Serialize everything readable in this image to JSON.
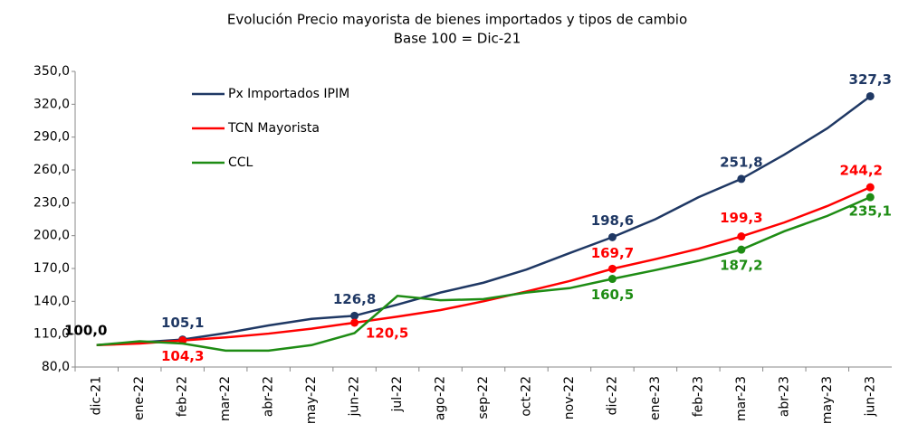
{
  "chart_data": {
    "type": "line",
    "title": "Evolución Precio mayorista de bienes importados y tipos de cambio",
    "subtitle": "Base 100 = Dic-21",
    "categories": [
      "dic-21",
      "ene-22",
      "feb-22",
      "mar-22",
      "abr-22",
      "may-22",
      "jun-22",
      "jul-22",
      "ago-22",
      "sep-22",
      "oct-22",
      "nov-22",
      "dic-22",
      "ene-23",
      "feb-23",
      "mar-23",
      "abr-23",
      "may-23",
      "jun-23"
    ],
    "series": [
      {
        "name": "Px Importados IPIM",
        "color": "#1f3864",
        "values": [
          100,
          102.5,
          105.1,
          111,
          118,
          124,
          126.8,
          137,
          148,
          157,
          169,
          184,
          198.6,
          215,
          235,
          251.8,
          274,
          298,
          327.3
        ],
        "value_labels": [
          "100,0",
          null,
          "105,1",
          null,
          null,
          null,
          "126,8",
          null,
          null,
          null,
          null,
          null,
          "198,6",
          null,
          null,
          "251,8",
          null,
          null,
          "327,3"
        ]
      },
      {
        "name": "TCN Mayorista",
        "color": "#ff0000",
        "values": [
          100,
          101.5,
          104.3,
          107,
          110.5,
          115,
          120.5,
          126,
          132,
          140,
          149,
          158.5,
          169.7,
          178.5,
          188,
          199.3,
          212,
          227,
          244.2
        ],
        "value_labels": [
          null,
          null,
          "104,3",
          null,
          null,
          null,
          "120,5",
          null,
          null,
          null,
          null,
          null,
          "169,7",
          null,
          null,
          "199,3",
          null,
          null,
          "244,2"
        ]
      },
      {
        "name": "CCL",
        "color": "#1e8c14",
        "values": [
          100,
          103.5,
          101.5,
          95,
          95,
          100,
          111,
          145,
          141,
          142,
          148,
          152,
          160.5,
          168.5,
          177,
          187.2,
          204,
          218,
          235.1
        ],
        "value_labels": [
          null,
          null,
          null,
          null,
          null,
          null,
          null,
          null,
          null,
          null,
          null,
          null,
          "160,5",
          null,
          null,
          "187,2",
          null,
          null,
          "235,1"
        ]
      }
    ],
    "ylim": [
      80,
      350
    ],
    "yticks": [
      {
        "value": 80,
        "label": "80,0"
      },
      {
        "value": 110,
        "label": "110,0"
      },
      {
        "value": 140,
        "label": "140,0"
      },
      {
        "value": 170,
        "label": "170,0"
      },
      {
        "value": 200,
        "label": "200,0"
      },
      {
        "value": 230,
        "label": "230,0"
      },
      {
        "value": 260,
        "label": "260,0"
      },
      {
        "value": 290,
        "label": "290,0"
      },
      {
        "value": 320,
        "label": "320,0"
      },
      {
        "value": 350,
        "label": "350,0"
      }
    ],
    "legend": "upper left"
  }
}
